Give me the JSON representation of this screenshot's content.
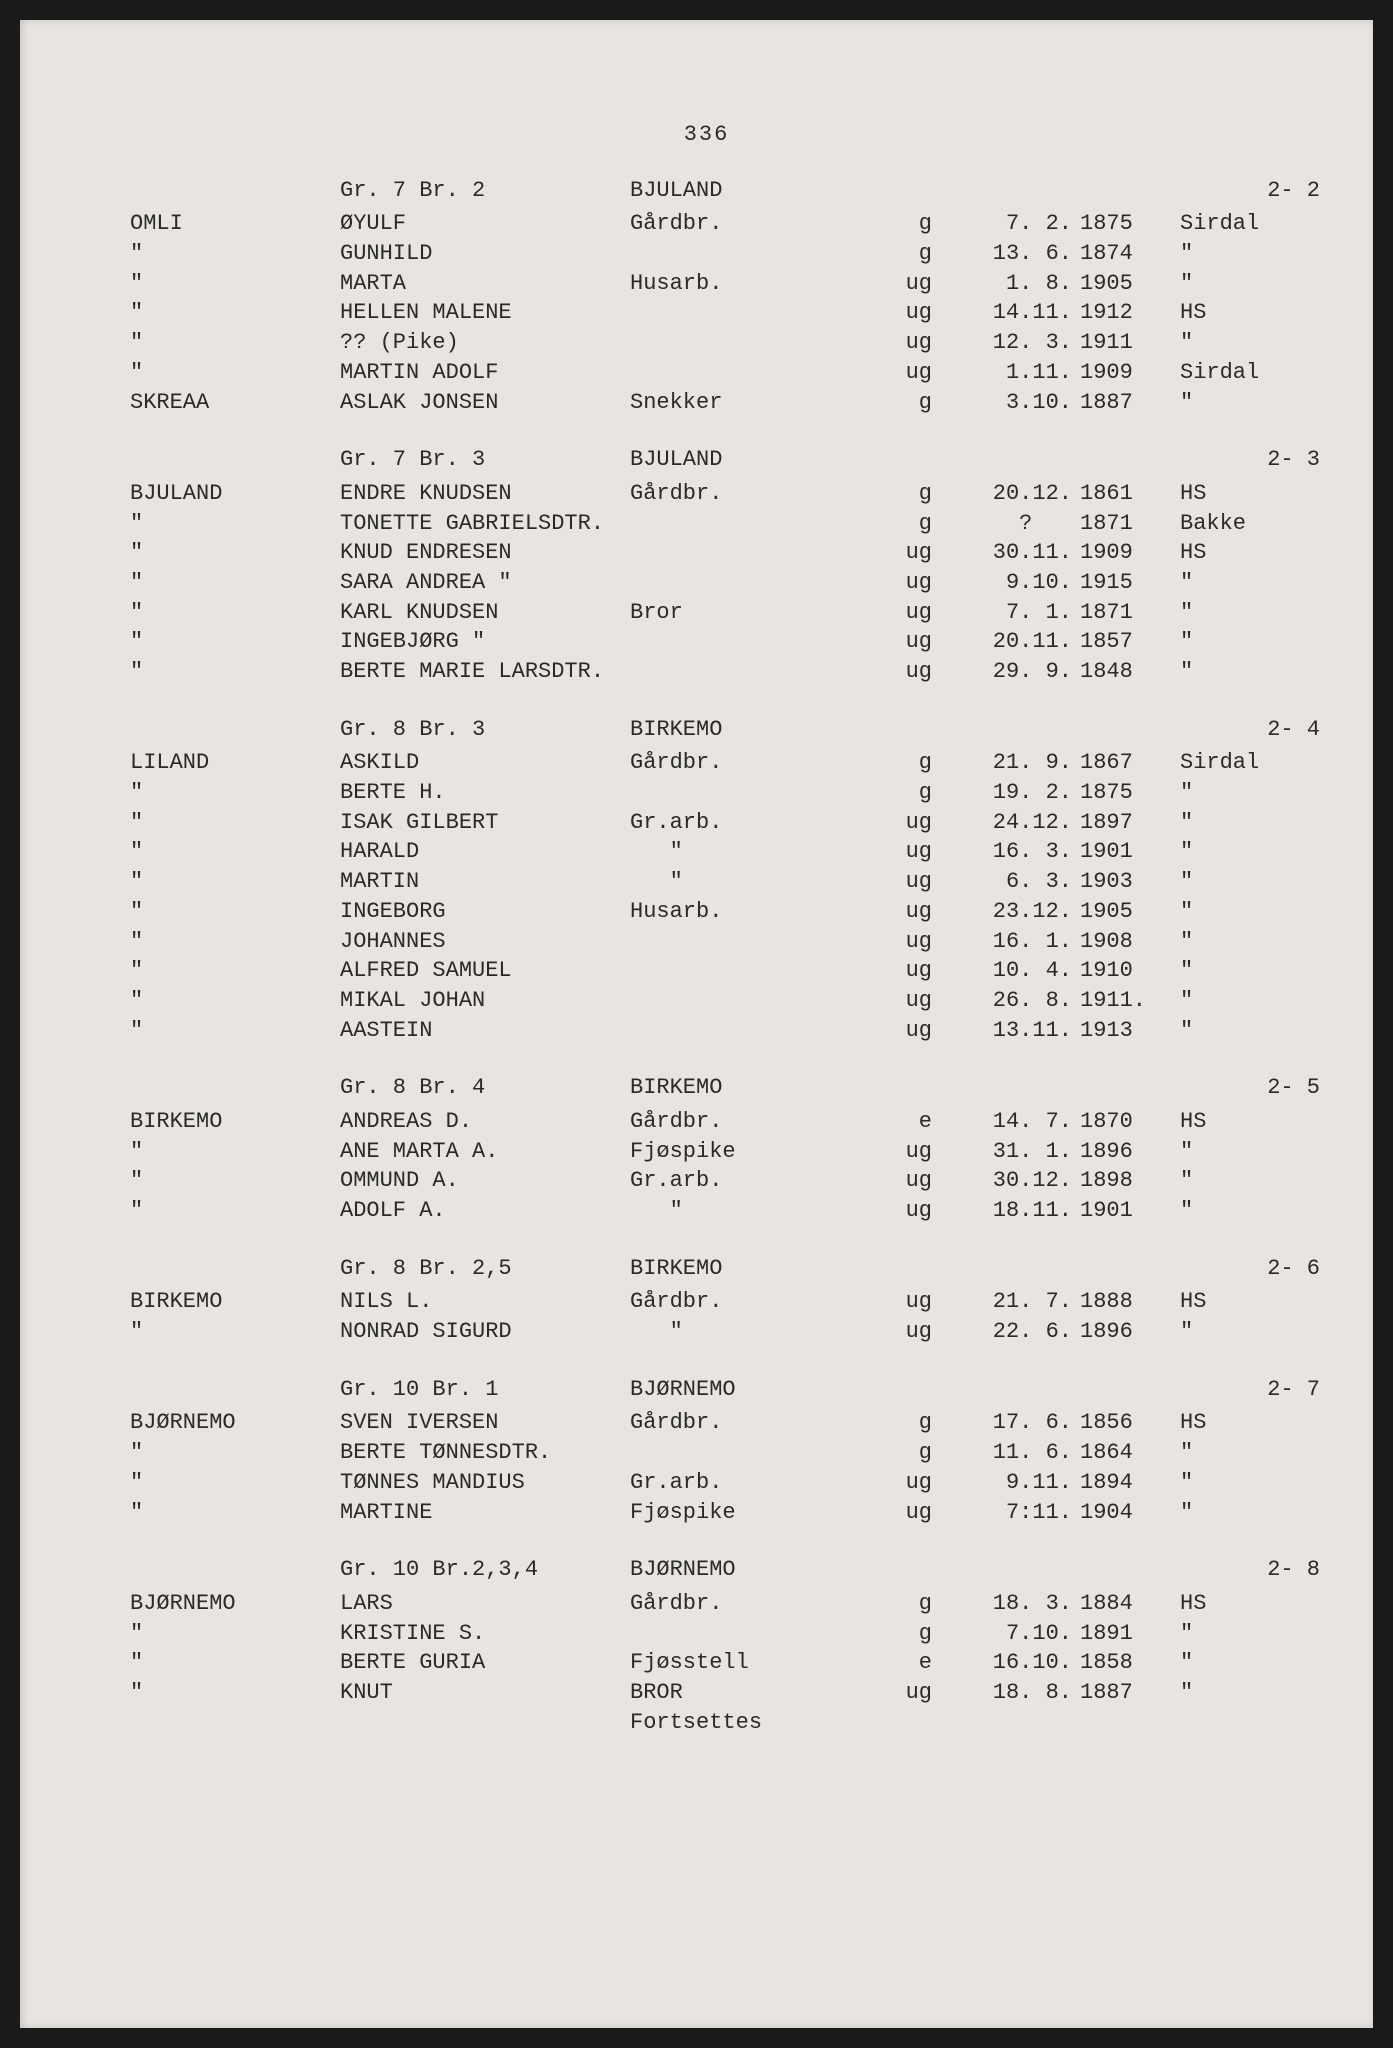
{
  "page_number": "336",
  "font": {
    "family": "Courier New",
    "size_pt": 22,
    "color": "#2a2a2a"
  },
  "colors": {
    "page_bg": "#e8e4e0",
    "outer_bg": "#1a1a1a"
  },
  "sections": [
    {
      "header": {
        "gr": "Gr. 7 Br. 2",
        "loc": "BJULAND",
        "ref": "2- 2"
      },
      "rows": [
        {
          "surname": "OMLI",
          "name": "ØYULF",
          "occ": "Gårdbr.",
          "status": "g",
          "date": " 7. 2.",
          "year": "1875",
          "place": "Sirdal"
        },
        {
          "surname": "\"",
          "name": "GUNHILD",
          "occ": "",
          "status": "g",
          "date": "13. 6.",
          "year": "1874",
          "place": "\""
        },
        {
          "surname": "\"",
          "name": "MARTA",
          "occ": "Husarb.",
          "status": "ug",
          "date": " 1. 8.",
          "year": "1905",
          "place": "\""
        },
        {
          "surname": "\"",
          "name": "HELLEN MALENE",
          "occ": "",
          "status": "ug",
          "date": "14.11.",
          "year": "1912",
          "place": "HS"
        },
        {
          "surname": "\"",
          "name": "?? (Pike)",
          "occ": "",
          "status": "ug",
          "date": "12. 3.",
          "year": "1911",
          "place": "\""
        },
        {
          "surname": "\"",
          "name": "MARTIN ADOLF",
          "occ": "",
          "status": "ug",
          "date": " 1.11.",
          "year": "1909",
          "place": "Sirdal"
        },
        {
          "surname": "SKREAA",
          "name": "ASLAK JONSEN",
          "occ": "Snekker",
          "status": "g",
          "date": " 3.10.",
          "year": "1887",
          "place": "\""
        }
      ]
    },
    {
      "header": {
        "gr": "Gr. 7 Br. 3",
        "loc": "BJULAND",
        "ref": "2- 3"
      },
      "rows": [
        {
          "surname": "BJULAND",
          "name": "ENDRE KNUDSEN",
          "occ": "Gårdbr.",
          "status": "g",
          "date": "20.12.",
          "year": "1861",
          "place": "HS"
        },
        {
          "surname": "\"",
          "name": "TONETTE GABRIELSDTR.",
          "occ": "",
          "status": "g",
          "date": "  ?   ",
          "year": "1871",
          "place": "Bakke"
        },
        {
          "surname": "\"",
          "name": "KNUD ENDRESEN",
          "occ": "",
          "status": "ug",
          "date": "30.11.",
          "year": "1909",
          "place": "HS"
        },
        {
          "surname": "\"",
          "name": "SARA ANDREA \"",
          "occ": "",
          "status": "ug",
          "date": " 9.10.",
          "year": "1915",
          "place": "\""
        },
        {
          "surname": "\"",
          "name": "KARL KNUDSEN",
          "occ": "Bror",
          "status": "ug",
          "date": " 7. 1.",
          "year": "1871",
          "place": "\""
        },
        {
          "surname": "\"",
          "name": "INGEBJØRG \"",
          "occ": "",
          "status": "ug",
          "date": "20.11.",
          "year": "1857",
          "place": "\""
        },
        {
          "surname": "\"",
          "name": "BERTE MARIE LARSDTR.",
          "occ": "",
          "status": "ug",
          "date": "29. 9.",
          "year": "1848",
          "place": "\""
        }
      ]
    },
    {
      "header": {
        "gr": "Gr. 8 Br. 3",
        "loc": "BIRKEMO",
        "ref": "2- 4"
      },
      "rows": [
        {
          "surname": "LILAND",
          "name": "ASKILD",
          "occ": "Gårdbr.",
          "status": "g",
          "date": "21. 9.",
          "year": "1867",
          "place": "Sirdal"
        },
        {
          "surname": "\"",
          "name": "BERTE H.",
          "occ": "",
          "status": "g",
          "date": "19. 2.",
          "year": "1875",
          "place": "\""
        },
        {
          "surname": "\"",
          "name": "ISAK GILBERT",
          "occ": "Gr.arb.",
          "status": "ug",
          "date": "24.12.",
          "year": "1897",
          "place": "\""
        },
        {
          "surname": "\"",
          "name": "HARALD",
          "occ": "   \"",
          "status": "ug",
          "date": "16. 3.",
          "year": "1901",
          "place": "\""
        },
        {
          "surname": "\"",
          "name": "MARTIN",
          "occ": "   \"",
          "status": "ug",
          "date": " 6. 3.",
          "year": "1903",
          "place": "\""
        },
        {
          "surname": "\"",
          "name": "INGEBORG",
          "occ": "Husarb.",
          "status": "ug",
          "date": "23.12.",
          "year": "1905",
          "place": "\""
        },
        {
          "surname": "\"",
          "name": "JOHANNES",
          "occ": "",
          "status": "ug",
          "date": "16. 1.",
          "year": "1908",
          "place": "\""
        },
        {
          "surname": "\"",
          "name": "ALFRED SAMUEL",
          "occ": "",
          "status": "ug",
          "date": "10. 4.",
          "year": "1910",
          "place": "\""
        },
        {
          "surname": "\"",
          "name": "MIKAL JOHAN",
          "occ": "",
          "status": "ug",
          "date": "26. 8.",
          "year": "1911.",
          "place": "\""
        },
        {
          "surname": "\"",
          "name": "AASTEIN",
          "occ": "",
          "status": "ug",
          "date": "13.11.",
          "year": "1913",
          "place": "\""
        }
      ]
    },
    {
      "header": {
        "gr": "Gr. 8 Br. 4",
        "loc": "BIRKEMO",
        "ref": "2- 5"
      },
      "rows": [
        {
          "surname": "BIRKEMO",
          "name": "ANDREAS D.",
          "occ": "Gårdbr.",
          "status": "e",
          "date": "14. 7.",
          "year": "1870",
          "place": "HS"
        },
        {
          "surname": "\"",
          "name": "ANE MARTA A.",
          "occ": "Fjøspike",
          "status": "ug",
          "date": "31. 1.",
          "year": "1896",
          "place": "\""
        },
        {
          "surname": "\"",
          "name": "OMMUND A.",
          "occ": "Gr.arb.",
          "status": "ug",
          "date": "30.12.",
          "year": "1898",
          "place": "\""
        },
        {
          "surname": "\"",
          "name": "ADOLF A.",
          "occ": "   \"",
          "status": "ug",
          "date": "18.11.",
          "year": "1901",
          "place": "\""
        }
      ]
    },
    {
      "header": {
        "gr": "Gr. 8 Br. 2,5",
        "loc": "BIRKEMO",
        "ref": "2- 6"
      },
      "rows": [
        {
          "surname": "BIRKEMO",
          "name": "NILS L.",
          "occ": "Gårdbr.",
          "status": "ug",
          "date": "21. 7.",
          "year": "1888",
          "place": "HS"
        },
        {
          "surname": "\"",
          "name": "NONRAD SIGURD",
          "occ": "   \"",
          "status": "ug",
          "date": "22. 6.",
          "year": "1896",
          "place": "\""
        }
      ]
    },
    {
      "header": {
        "gr": "Gr. 10 Br. 1",
        "loc": "BJØRNEMO",
        "ref": "2- 7"
      },
      "rows": [
        {
          "surname": "BJØRNEMO",
          "name": "SVEN IVERSEN",
          "occ": "Gårdbr.",
          "status": "g",
          "date": "17. 6.",
          "year": "1856",
          "place": "HS"
        },
        {
          "surname": "\"",
          "name": "BERTE TØNNESDTR.",
          "occ": "",
          "status": "g",
          "date": "11. 6.",
          "year": "1864",
          "place": "\""
        },
        {
          "surname": "\"",
          "name": "TØNNES MANDIUS",
          "occ": "Gr.arb.",
          "status": "ug",
          "date": " 9.11.",
          "year": "1894",
          "place": "\""
        },
        {
          "surname": "\"",
          "name": "MARTINE",
          "occ": "Fjøspike",
          "status": "ug",
          "date": " 7:11.",
          "year": "1904",
          "place": "\""
        }
      ]
    },
    {
      "header": {
        "gr": "Gr. 10 Br.2,3,4",
        "loc": "BJØRNEMO",
        "ref": "2- 8"
      },
      "rows": [
        {
          "surname": "BJØRNEMO",
          "name": "LARS",
          "occ": "Gårdbr.",
          "status": "g",
          "date": "18. 3.",
          "year": "1884",
          "place": "HS"
        },
        {
          "surname": "\"",
          "name": "KRISTINE S.",
          "occ": "",
          "status": "g",
          "date": " 7.10.",
          "year": "1891",
          "place": "\""
        },
        {
          "surname": "\"",
          "name": "BERTE GURIA",
          "occ": "Fjøsstell",
          "status": "e",
          "date": "16.10.",
          "year": "1858",
          "place": "\""
        },
        {
          "surname": "\"",
          "name": "KNUT",
          "occ": "BROR",
          "status": "ug",
          "date": "18. 8.",
          "year": "1887",
          "place": "\""
        }
      ],
      "continue": "Fortsettes"
    }
  ]
}
